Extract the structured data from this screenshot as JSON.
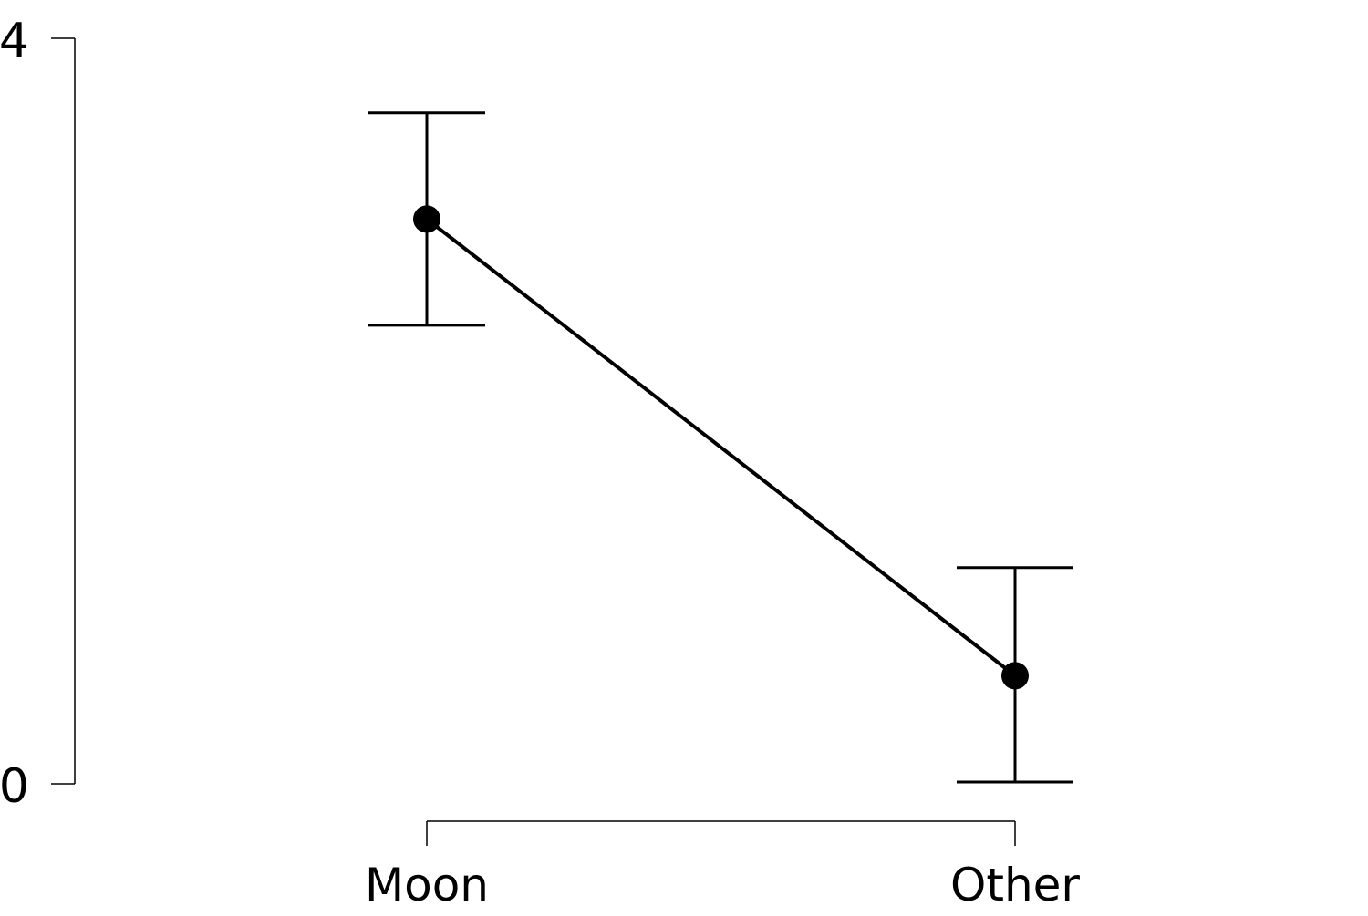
{
  "chart_data": {
    "type": "line",
    "categories": [
      "Moon",
      "Other"
    ],
    "values": [
      3.03,
      0.58
    ],
    "error_low": [
      2.46,
      0.01
    ],
    "error_high": [
      3.6,
      1.16
    ],
    "ylim": [
      0,
      4
    ],
    "y_ticks": [
      "0",
      "4"
    ],
    "grid": false,
    "legend": "none",
    "title": "",
    "xlabel": "",
    "ylabel": "",
    "colors": {
      "line": "#000000",
      "point": "#000000",
      "axis": "#000000"
    }
  }
}
